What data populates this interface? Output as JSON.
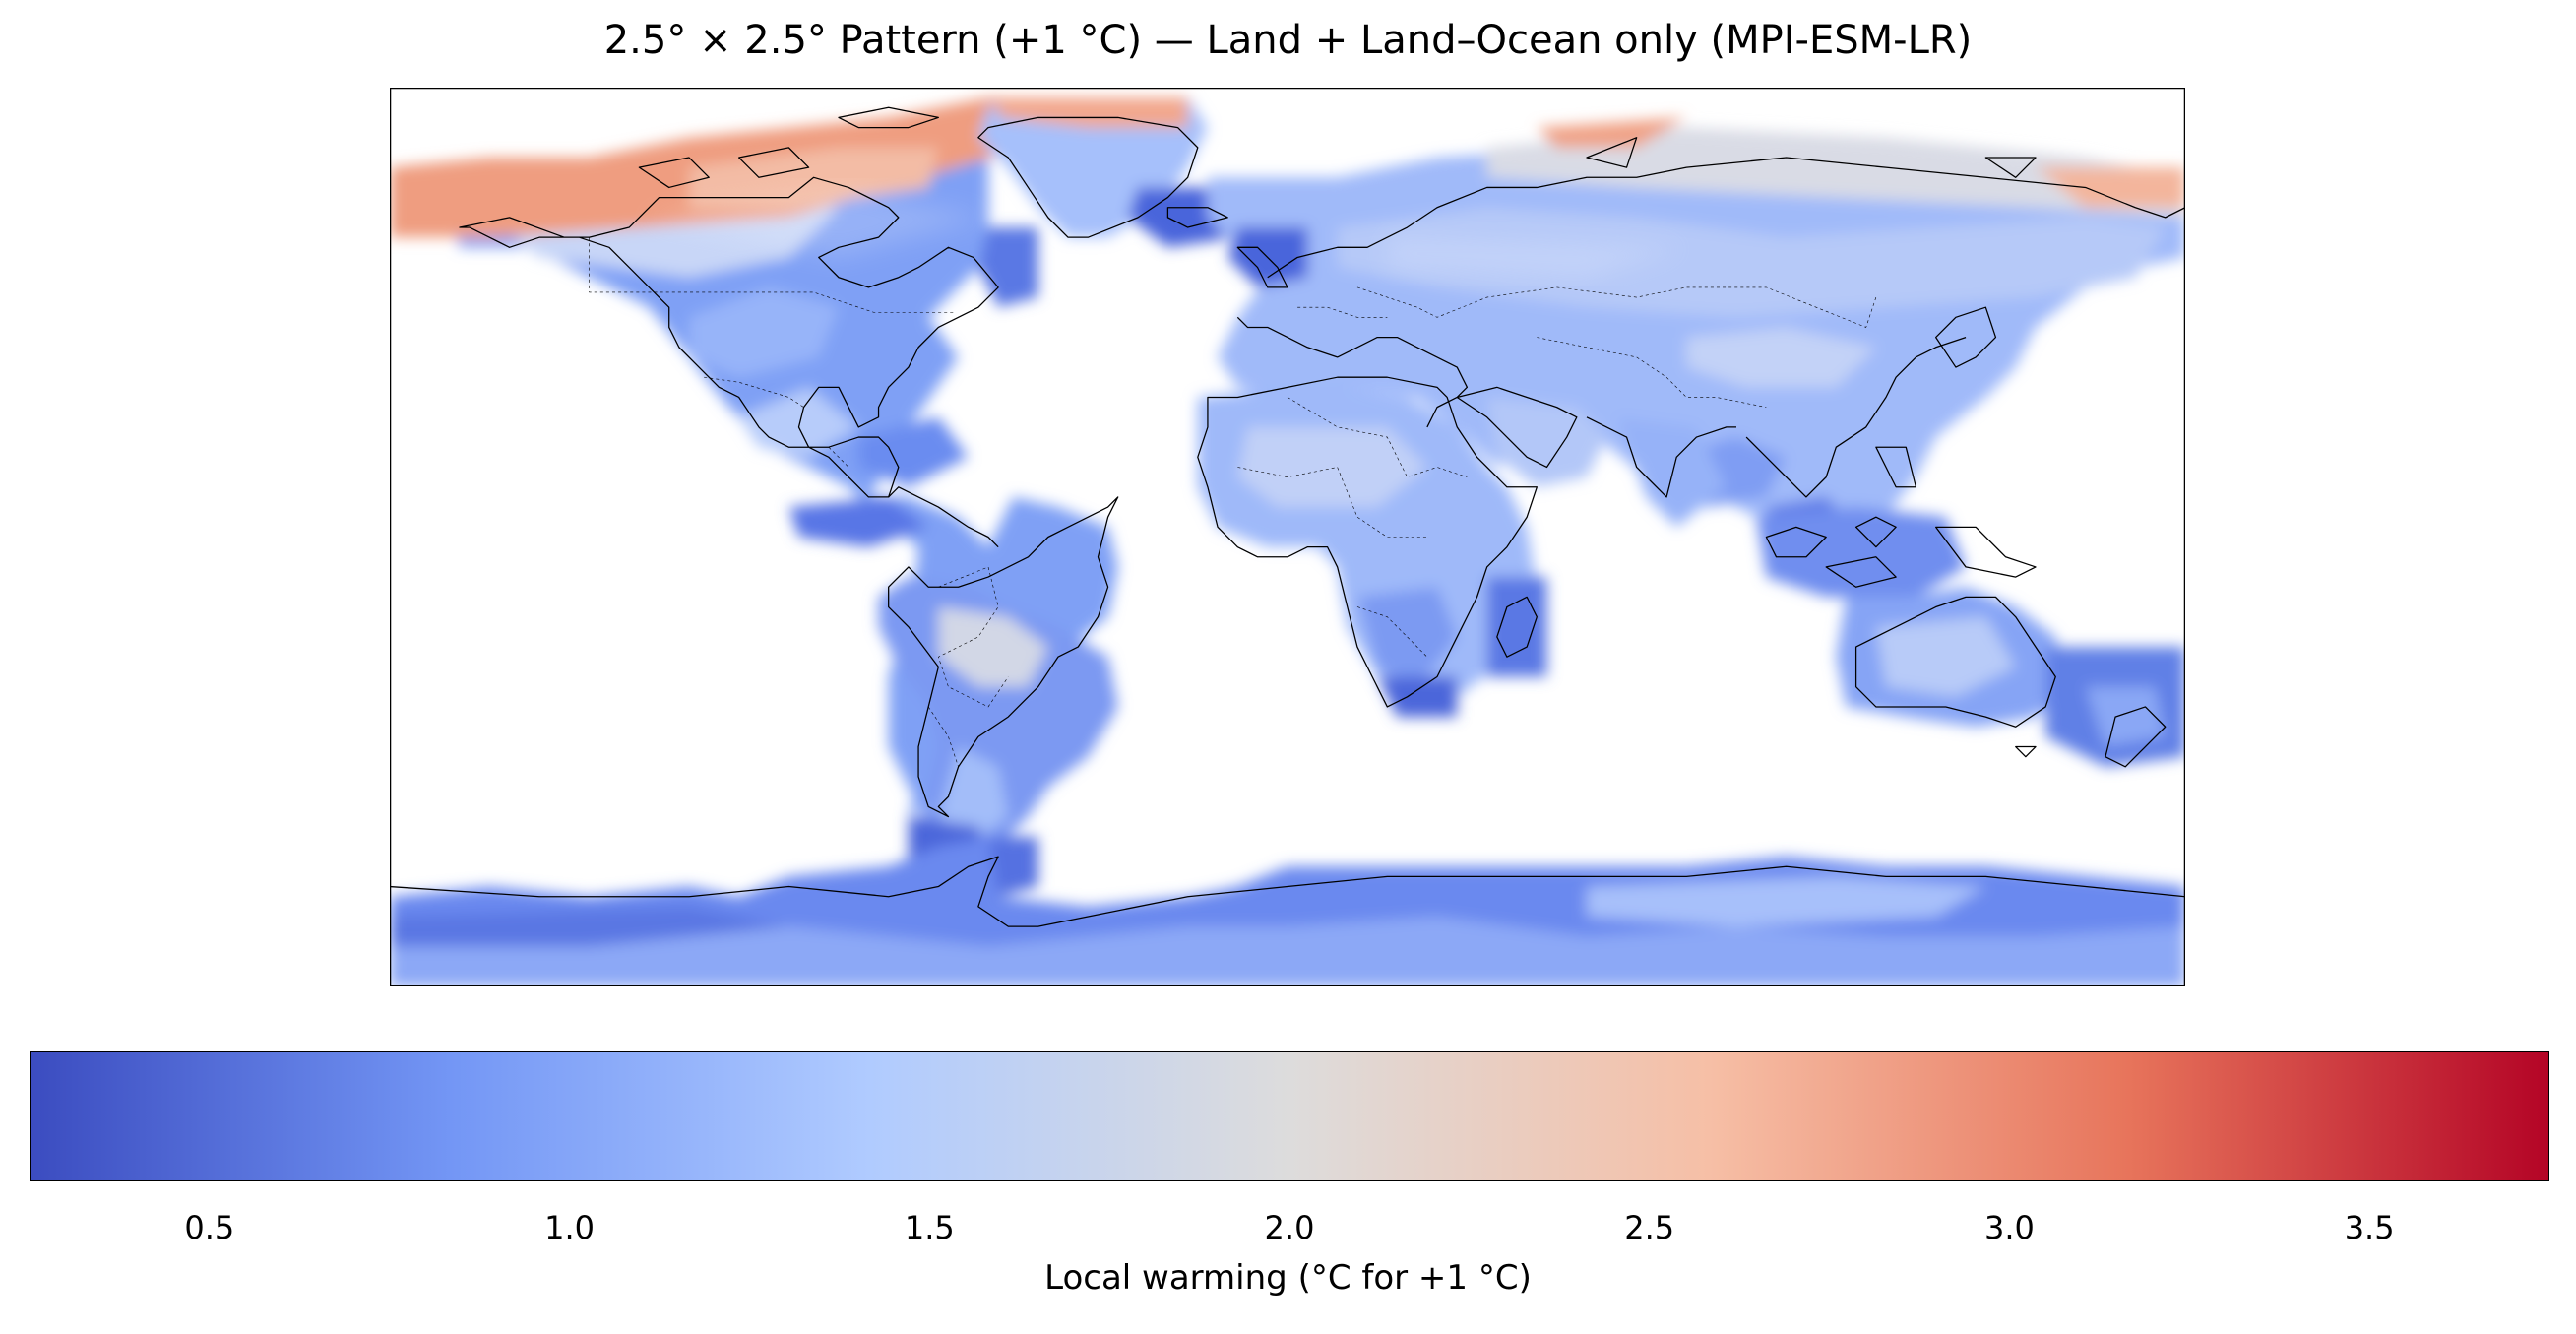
{
  "title": "2.5° × 2.5° Pattern (+1 °C) — Land + Land–Ocean only (MPI-ESM-LR)",
  "colorbar": {
    "label": "Local warming (°C for +1 °C)",
    "vmin": 0.25,
    "vmax": 3.75,
    "colormap": "coolwarm",
    "stops": [
      "#3b4cc0",
      "#7396f5",
      "#b0cbff",
      "#dddcdc",
      "#f6bfa6",
      "#e7745b",
      "#b40426"
    ],
    "ticks": [
      {
        "value": 0.5,
        "label": "0.5"
      },
      {
        "value": 1.0,
        "label": "1.0"
      },
      {
        "value": 1.5,
        "label": "1.5"
      },
      {
        "value": 2.0,
        "label": "2.0"
      },
      {
        "value": 2.5,
        "label": "2.5"
      },
      {
        "value": 3.0,
        "label": "3.0"
      },
      {
        "value": 3.5,
        "label": "3.5"
      }
    ]
  },
  "map_data": {
    "projection": "PlateCarree",
    "extent": {
      "lon": [
        -180,
        180
      ],
      "lat": [
        -90,
        90
      ]
    },
    "grid_resolution_deg": 2.5,
    "colors": {
      "ocean_mask": "#ffffff",
      "coastline": "#000000",
      "borders": "#000000"
    }
  }
}
